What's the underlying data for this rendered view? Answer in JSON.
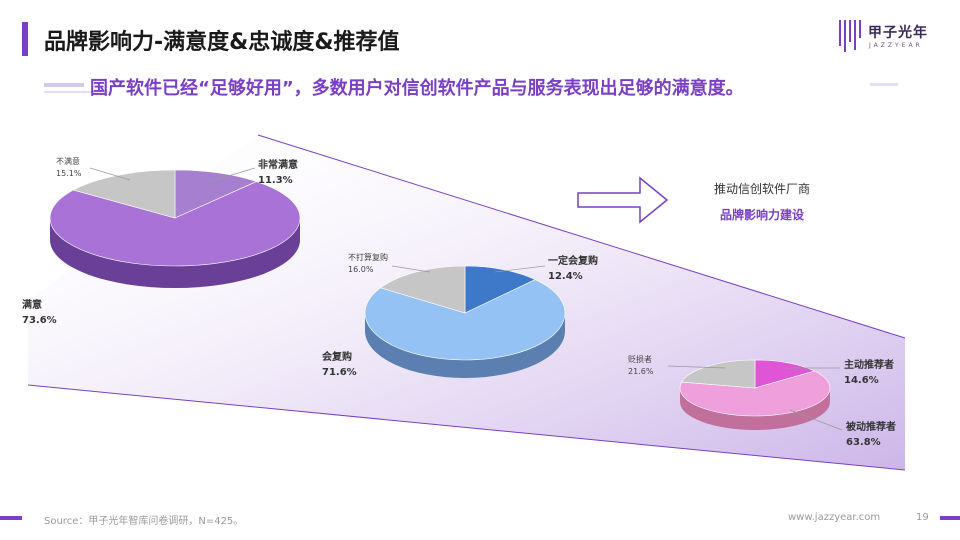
{
  "title": "品牌影响力-满意度&忠诚度&推荐值",
  "subtitle": "国产软件已经“足够好用”，多数用户对信创软件产品与服务表现出足够的满意度。",
  "logo": {
    "cn": "甲子光年",
    "en": "JAZZYEAR"
  },
  "callout": {
    "line1": "推动信创软件厂商",
    "line2": "品牌影响力建设"
  },
  "footer": {
    "source": "Source：甲子光年智库问卷调研，N=425。",
    "url": "www.jazzyear.com",
    "page": "19"
  },
  "colors": {
    "accent": "#7a3fc4"
  },
  "chart_data": [
    {
      "type": "pie",
      "labels": [
        "非常满意",
        "满意",
        "不满意"
      ],
      "values": [
        11.3,
        73.6,
        15.1
      ],
      "value_labels": [
        "11.3%",
        "73.6%",
        "15.1%"
      ],
      "colors": [
        "#a67fd0",
        "#a872d6",
        "#c6c6c6"
      ]
    },
    {
      "type": "pie",
      "labels": [
        "一定会复购",
        "会复购",
        "不打算复购"
      ],
      "values": [
        12.4,
        71.6,
        16.0
      ],
      "value_labels": [
        "12.4%",
        "71.6%",
        "16.0%"
      ],
      "colors": [
        "#3d78c9",
        "#94c2f4",
        "#c6c6c6"
      ]
    },
    {
      "type": "pie",
      "labels": [
        "主动推荐者",
        "被动推荐者",
        "贬损者"
      ],
      "values": [
        14.6,
        63.8,
        21.6
      ],
      "value_labels": [
        "14.6%",
        "63.8%",
        "21.6%"
      ],
      "colors": [
        "#e055d6",
        "#ee9fdc",
        "#c6c6c6"
      ]
    }
  ]
}
